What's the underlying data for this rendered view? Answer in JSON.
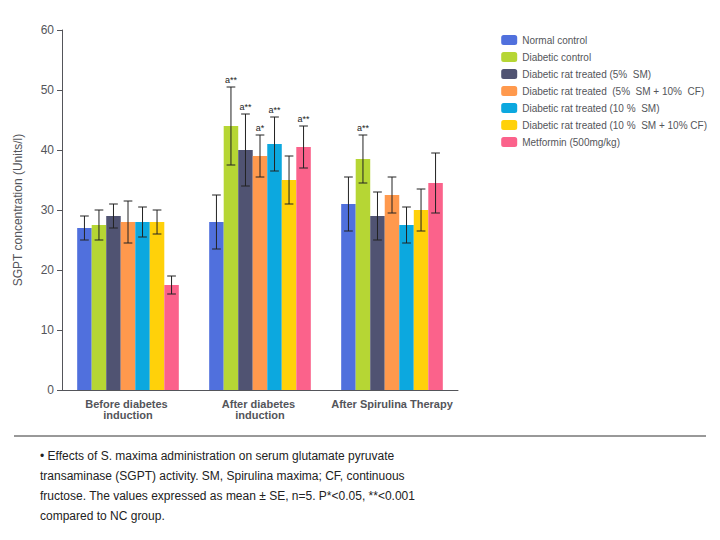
{
  "chart_data": {
    "type": "bar",
    "categories": [
      "Before diabetes induction",
      "After diabetes induction",
      "After Spirulina Therapy"
    ],
    "series": [
      {
        "name": "Normal control",
        "values": [
          27.0,
          28.0,
          31.0
        ],
        "errors": [
          2.0,
          4.5,
          4.5
        ],
        "annotations": [
          null,
          null,
          null
        ]
      },
      {
        "name": "Diabetic control",
        "values": [
          27.5,
          44.0,
          38.5
        ],
        "errors": [
          2.5,
          6.5,
          4.0
        ],
        "annotations": [
          null,
          "a**",
          "a**"
        ]
      },
      {
        "name": "Diabetic rat treated (5%  SM)",
        "values": [
          29.0,
          40.0,
          29.0
        ],
        "errors": [
          2.0,
          6.0,
          4.0
        ],
        "annotations": [
          null,
          "a**",
          null
        ]
      },
      {
        "name": "Diabetic rat treated  (5%  SM + 10%  CF)",
        "values": [
          28.0,
          39.0,
          32.5
        ],
        "errors": [
          3.5,
          3.5,
          3.0
        ],
        "annotations": [
          null,
          "a*",
          null
        ]
      },
      {
        "name": "Diabetic rat treated (10 %  SM)",
        "values": [
          28.0,
          41.0,
          27.5
        ],
        "errors": [
          2.5,
          4.5,
          3.0
        ],
        "annotations": [
          null,
          "a**",
          null
        ]
      },
      {
        "name": "Diabetic rat treated (10 %  SM + 10% CF)",
        "values": [
          28.0,
          35.0,
          30.0
        ],
        "errors": [
          2.0,
          4.0,
          3.5
        ],
        "annotations": [
          null,
          null,
          null
        ]
      },
      {
        "name": "Metformin (500mg/kg)",
        "values": [
          17.5,
          40.5,
          34.5
        ],
        "errors": [
          1.5,
          3.5,
          5.0
        ],
        "annotations": [
          null,
          "a**",
          null
        ]
      }
    ],
    "ylabel": "SGPT concentration (Units/l)",
    "ylim": [
      0,
      60
    ],
    "yticks": [
      0,
      10,
      20,
      30,
      40,
      50,
      60
    ],
    "grid": false,
    "legend": "upper right",
    "caption": [
      "• Effects of S. maxima administration on serum glutamate pyruvate",
      "transaminase (SGPT) activity. SM, Spirulina maxima; CF, continuous",
      "fructose. The values expressed as mean ± SE, n=5. P*<0.05, **<0.001",
      "compared to NC group."
    ]
  }
}
